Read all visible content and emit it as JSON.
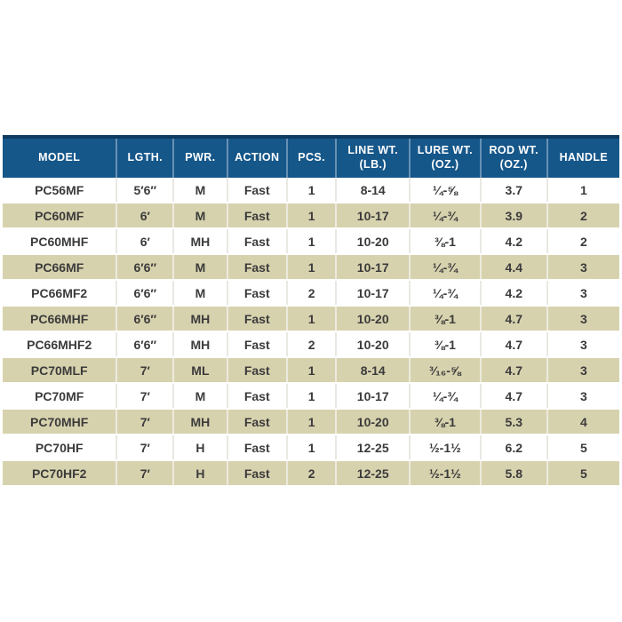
{
  "colors": {
    "header_bg": "#16578a",
    "header_top_border": "#0d3c60",
    "header_text": "#ffffff",
    "row_alt_bg": "#d7d2ae",
    "row_bg": "#ffffff",
    "body_text": "#3b3b3b"
  },
  "chart_data": {
    "type": "table",
    "title": "",
    "columns": [
      {
        "key": "model",
        "label": "MODEL"
      },
      {
        "key": "lgth",
        "label": "LGTH."
      },
      {
        "key": "pwr",
        "label": "PWR."
      },
      {
        "key": "action",
        "label": "ACTION"
      },
      {
        "key": "pcs",
        "label": "PCS."
      },
      {
        "key": "line_wt",
        "label": "LINE WT. (LB.)"
      },
      {
        "key": "lure_wt",
        "label": "LURE WT. (OZ.)"
      },
      {
        "key": "rod_wt",
        "label": "ROD WT. (OZ.)"
      },
      {
        "key": "handle",
        "label": "HANDLE"
      }
    ],
    "header_labels_two_line": [
      [
        "MODEL"
      ],
      [
        "LGTH."
      ],
      [
        "PWR."
      ],
      [
        "ACTION"
      ],
      [
        "PCS."
      ],
      [
        "LINE WT.",
        "(LB.)"
      ],
      [
        "LURE WT.",
        "(OZ.)"
      ],
      [
        "ROD WT.",
        "(OZ.)"
      ],
      [
        "HANDLE"
      ]
    ],
    "rows": [
      [
        "PC56MF",
        "5′6″",
        "M",
        "Fast",
        "1",
        "8-14",
        "¼-⅝",
        "3.7",
        "1"
      ],
      [
        "PC60MF",
        "6′",
        "M",
        "Fast",
        "1",
        "10-17",
        "¼-¾",
        "3.9",
        "2"
      ],
      [
        "PC60MHF",
        "6′",
        "MH",
        "Fast",
        "1",
        "10-20",
        "⅜-1",
        "4.2",
        "2"
      ],
      [
        "PC66MF",
        "6′6″",
        "M",
        "Fast",
        "1",
        "10-17",
        "¼-¾",
        "4.4",
        "3"
      ],
      [
        "PC66MF2",
        "6′6″",
        "M",
        "Fast",
        "2",
        "10-17",
        "¼-¾",
        "4.2",
        "3"
      ],
      [
        "PC66MHF",
        "6′6″",
        "MH",
        "Fast",
        "1",
        "10-20",
        "⅜-1",
        "4.7",
        "3"
      ],
      [
        "PC66MHF2",
        "6′6″",
        "MH",
        "Fast",
        "2",
        "10-20",
        "⅜-1",
        "4.7",
        "3"
      ],
      [
        "PC70MLF",
        "7′",
        "ML",
        "Fast",
        "1",
        "8-14",
        "³⁄₁₆-⅝",
        "4.7",
        "3"
      ],
      [
        "PC70MF",
        "7′",
        "M",
        "Fast",
        "1",
        "10-17",
        "¼-¾",
        "4.7",
        "3"
      ],
      [
        "PC70MHF",
        "7′",
        "MH",
        "Fast",
        "1",
        "10-20",
        "⅜-1",
        "5.3",
        "4"
      ],
      [
        "PC70HF",
        "7′",
        "H",
        "Fast",
        "1",
        "12-25",
        "½-1½",
        "6.2",
        "5"
      ],
      [
        "PC70HF2",
        "7′",
        "H",
        "Fast",
        "2",
        "12-25",
        "½-1½",
        "5.8",
        "5"
      ]
    ],
    "column_widths_pct": [
      18.5,
      9.2,
      8.7,
      9.7,
      8.0,
      11.9,
      11.5,
      10.8,
      11.7
    ],
    "zebra_striping": "odd rows white, even rows khaki"
  }
}
